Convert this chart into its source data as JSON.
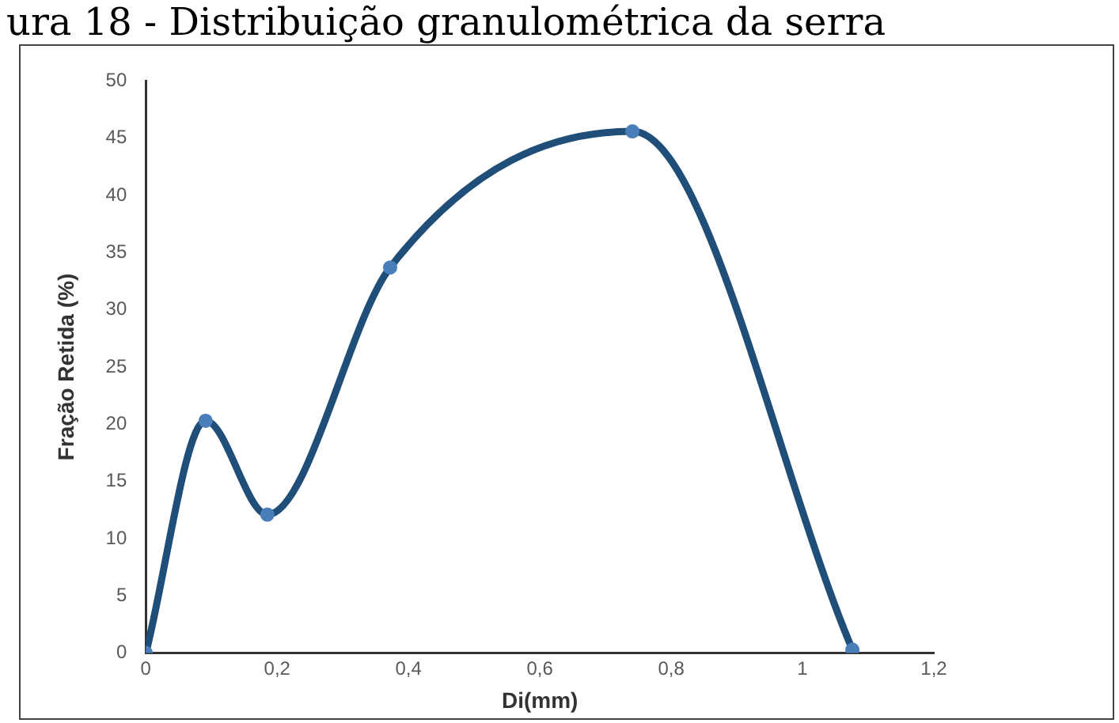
{
  "chart_data": {
    "type": "scatter",
    "title": "ura 18 - Distribuição granulométrica da serra",
    "xlabel": "Di(mm)",
    "ylabel": "Fração Retida (%)",
    "series": [
      {
        "type": "line",
        "color": "#1f4e79",
        "x": [
          0,
          0.091,
          0.185,
          0.372,
          0.741,
          1.076
        ],
        "values": [
          0,
          20.3,
          12.1,
          33.7,
          45.6,
          0.3
        ]
      }
    ],
    "xlim": [
      0,
      1.2
    ],
    "xticks": [
      0,
      {
        "value": 0.2,
        "label": "0,2"
      },
      {
        "value": 0.4,
        "label": "0,4"
      },
      {
        "value": 0.6,
        "label": "0,6"
      },
      {
        "value": 0.8,
        "label": "0,8"
      },
      1,
      {
        "value": 1.2,
        "label": "1,2"
      }
    ],
    "ylim": [
      0,
      50
    ],
    "yticks": [
      0,
      5,
      10,
      15,
      20,
      25,
      30,
      35,
      40,
      45,
      50
    ],
    "grid": false,
    "legend": false,
    "marker": "circle",
    "line_style": "solid"
  }
}
